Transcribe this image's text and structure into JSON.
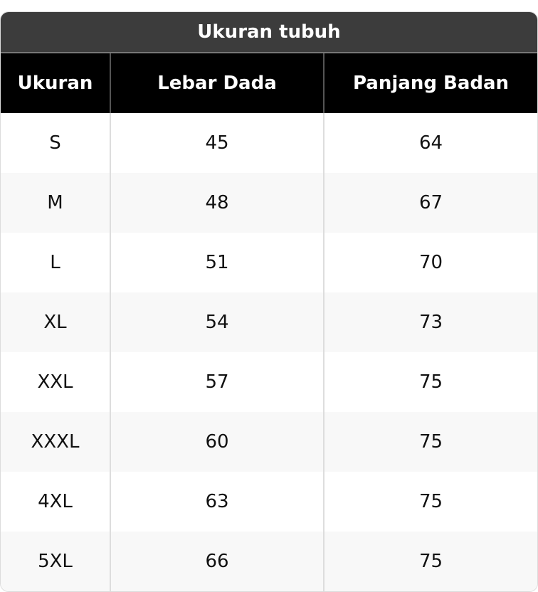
{
  "title": "Ukuran tubuh",
  "headers": [
    "Ukuran",
    "Lebar Dada",
    "Panjang Badan"
  ],
  "rows": [
    [
      "S",
      "45",
      "64"
    ],
    [
      "M",
      "48",
      "67"
    ],
    [
      "L",
      "51",
      "70"
    ],
    [
      "XL",
      "54",
      "73"
    ],
    [
      "XXL",
      "57",
      "75"
    ],
    [
      "XXXL",
      "60",
      "75"
    ],
    [
      "4XL",
      "63",
      "75"
    ],
    [
      "5XL",
      "66",
      "75"
    ]
  ]
}
